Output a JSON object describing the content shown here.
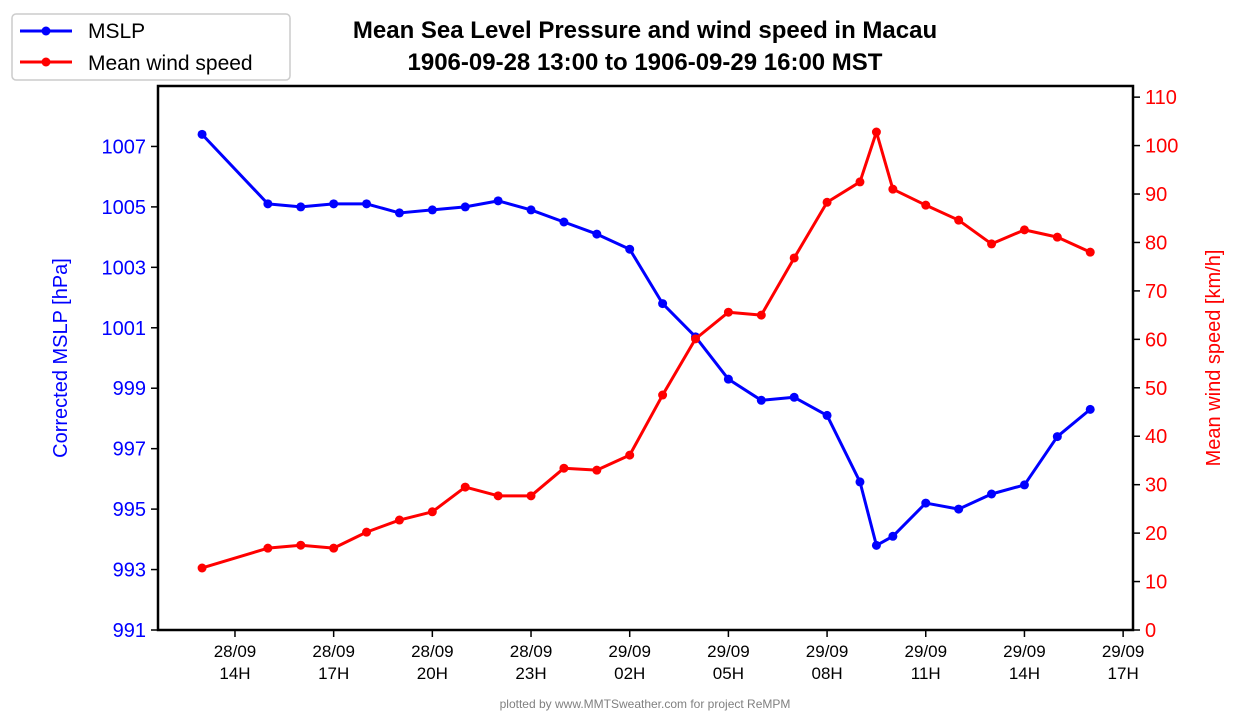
{
  "chart_data": {
    "type": "line",
    "title": "Mean Sea Level Pressure and wind speed in Macau",
    "subtitle": "1906-09-28 13:00 to 1906-09-29 16:00 MST",
    "footer": "plotted by www.MMTSweather.com for project ReMPM",
    "xlabel": "",
    "ylabel_left": "Corrected MSLP [hPa]",
    "ylabel_right": "Mean wind speed [km/h]",
    "x_hours_since_1906_09_28_13h": [
      0,
      2,
      3,
      4,
      5,
      6,
      7,
      8,
      9,
      10,
      11,
      12,
      13,
      14,
      15,
      16,
      17,
      18,
      19,
      20,
      20.5,
      21,
      22,
      23,
      24,
      25,
      26,
      27
    ],
    "x_xlim_hours": [
      -1.34,
      28.3
    ],
    "x_ticks": [
      {
        "hour": 1,
        "label": [
          "28/09",
          "14H"
        ]
      },
      {
        "hour": 4,
        "label": [
          "28/09",
          "17H"
        ]
      },
      {
        "hour": 7,
        "label": [
          "28/09",
          "20H"
        ]
      },
      {
        "hour": 10,
        "label": [
          "28/09",
          "23H"
        ]
      },
      {
        "hour": 13,
        "label": [
          "29/09",
          "02H"
        ]
      },
      {
        "hour": 16,
        "label": [
          "29/09",
          "05H"
        ]
      },
      {
        "hour": 19,
        "label": [
          "29/09",
          "08H"
        ]
      },
      {
        "hour": 22,
        "label": [
          "29/09",
          "11H"
        ]
      },
      {
        "hour": 25,
        "label": [
          "29/09",
          "14H"
        ]
      },
      {
        "hour": 28,
        "label": [
          "29/09",
          "17H"
        ]
      }
    ],
    "ylim_left": [
      991,
      1009
    ],
    "yticks_left": [
      991,
      993,
      995,
      997,
      999,
      1001,
      1003,
      1005,
      1007
    ],
    "ylim_right": [
      0,
      112.3
    ],
    "yticks_right": [
      0,
      10,
      20,
      30,
      40,
      50,
      60,
      70,
      80,
      90,
      100,
      110
    ],
    "grid": false,
    "legend_placement": "top-left (outside)",
    "series": [
      {
        "name": "MSLP",
        "axis": "left",
        "color": "#0000ff",
        "values": [
          1007.4,
          1005.1,
          1005.0,
          1005.1,
          1005.1,
          1004.8,
          1004.9,
          1005.0,
          1005.2,
          1004.9,
          1004.5,
          1004.1,
          1003.6,
          1001.8,
          1000.7,
          999.3,
          998.6,
          998.7,
          998.1,
          995.9,
          993.8,
          994.1,
          995.2,
          995.0,
          995.5,
          995.8,
          997.4,
          998.3
        ]
      },
      {
        "name": "Mean wind speed",
        "axis": "right",
        "color": "#ff0000",
        "values": [
          12.8,
          16.9,
          17.5,
          16.9,
          20.2,
          22.7,
          24.4,
          29.5,
          27.7,
          27.7,
          33.4,
          33.0,
          36.1,
          48.5,
          60.1,
          65.6,
          65.0,
          76.8,
          88.3,
          92.5,
          102.8,
          91.0,
          87.7,
          84.6,
          79.7,
          82.6,
          81.1,
          78.0
        ]
      }
    ]
  }
}
